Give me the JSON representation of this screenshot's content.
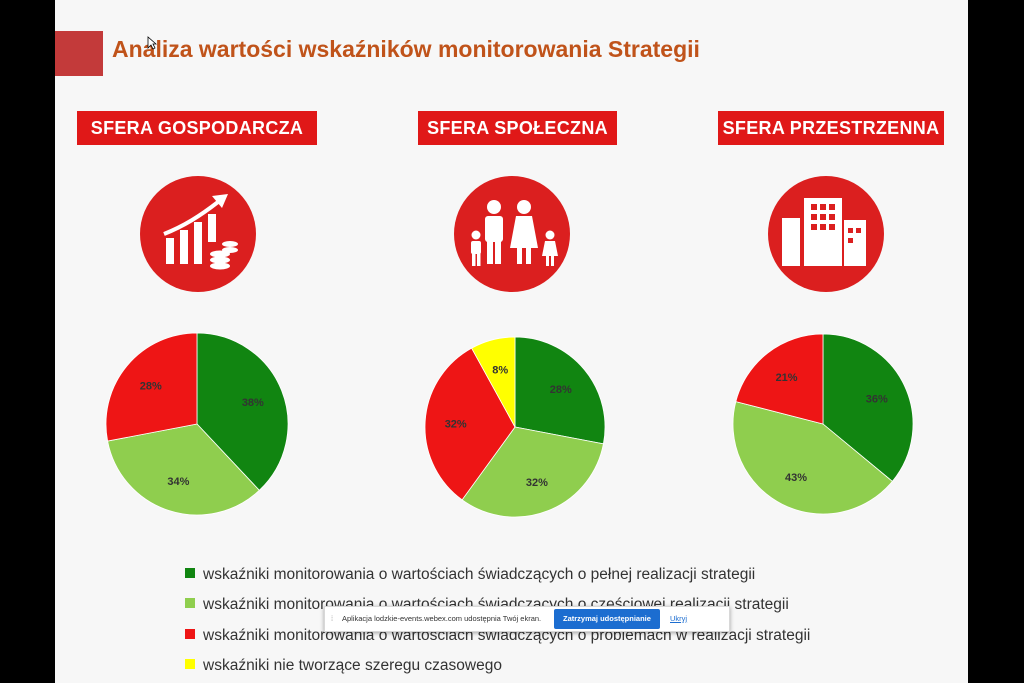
{
  "slide": {
    "title": "Analiza wartości wskaźników monitorowania Strategii"
  },
  "colors": {
    "green_dark": "#118511",
    "green_light": "#8fce4e",
    "red": "#ee1515",
    "yellow": "#ffff00",
    "label_red": "#e01818",
    "title_orange": "#c0531a"
  },
  "spheres": [
    {
      "label": "SFERA GOSPODARCZA",
      "icon": "growth-chart-icon"
    },
    {
      "label": "SFERA SPOŁECZNA",
      "icon": "family-icon"
    },
    {
      "label": "SFERA PRZESTRZENNA",
      "icon": "building-icon"
    }
  ],
  "chart_data": [
    {
      "type": "pie",
      "title": "",
      "slices": [
        {
          "legend_index": 0,
          "value": 38,
          "label": "38%",
          "color": "#118511"
        },
        {
          "legend_index": 1,
          "value": 34,
          "label": "34%",
          "color": "#8fce4e"
        },
        {
          "legend_index": 2,
          "value": 28,
          "label": "28%",
          "color": "#ee1515"
        }
      ]
    },
    {
      "type": "pie",
      "title": "",
      "slices": [
        {
          "legend_index": 0,
          "value": 28,
          "label": "28%",
          "color": "#118511"
        },
        {
          "legend_index": 1,
          "value": 32,
          "label": "32%",
          "color": "#8fce4e"
        },
        {
          "legend_index": 2,
          "value": 32,
          "label": "32%",
          "color": "#ee1515"
        },
        {
          "legend_index": 3,
          "value": 8,
          "label": "8%",
          "color": "#ffff00"
        }
      ]
    },
    {
      "type": "pie",
      "title": "",
      "slices": [
        {
          "legend_index": 0,
          "value": 36,
          "label": "36%",
          "color": "#118511"
        },
        {
          "legend_index": 1,
          "value": 43,
          "label": "43%",
          "color": "#8fce4e"
        },
        {
          "legend_index": 2,
          "value": 21,
          "label": "21%",
          "color": "#ee1515"
        }
      ]
    }
  ],
  "legend": [
    {
      "text": "wskaźniki monitorowania o wartościach świadczących o pełnej realizacji strategii",
      "color": "#118511"
    },
    {
      "text": "wskaźniki monitorowania o wartościach świadczących o częściowej realizacji strategii",
      "color": "#8fce4e"
    },
    {
      "text": "wskaźniki monitorowania o wartościach świadczących o problemach w realizacji strategii",
      "color": "#ee1515"
    },
    {
      "text": "wskaźniki nie tworzące szeregu czasowego",
      "color": "#ffff00"
    }
  ],
  "share_bar": {
    "grip": "⁞",
    "message": "Aplikacja lodzkie-events.webex.com udostępnia Twój ekran.",
    "stop_button": "Zatrzymaj udostępnianie",
    "hide_link": "Ukryj"
  }
}
